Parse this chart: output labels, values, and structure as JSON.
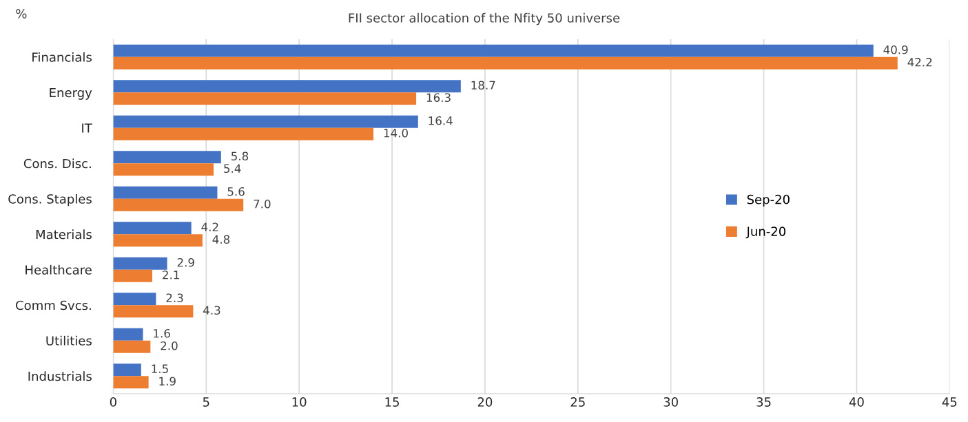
{
  "chart_data": {
    "type": "bar",
    "orientation": "horizontal",
    "title": "FII sector allocation of the Nfity 50 universe",
    "ylabel": "%",
    "categories": [
      "Financials",
      "Energy",
      "IT",
      "Cons. Disc.",
      "Cons. Staples",
      "Materials",
      "Healthcare",
      "Comm Svcs.",
      "Utilities",
      "Industrials"
    ],
    "series": [
      {
        "name": "Sep-20",
        "color": "#4472c4",
        "values": [
          40.9,
          18.7,
          16.4,
          5.8,
          5.6,
          4.2,
          2.9,
          2.3,
          1.6,
          1.5
        ],
        "value_labels": [
          "40.9",
          "18.7",
          "16.4",
          "5.8",
          "5.6",
          "4.2",
          "2.9",
          "2.3",
          "1.6",
          "1.5"
        ]
      },
      {
        "name": "Jun-20",
        "color": "#ed7d31",
        "values": [
          42.2,
          16.3,
          14.0,
          5.4,
          7.0,
          4.8,
          2.1,
          4.3,
          2.0,
          1.9
        ],
        "value_labels": [
          "42.2",
          "16.3",
          "14.0",
          "5.4",
          "7.0",
          "4.8",
          "2.1",
          "4.3",
          "2.0",
          "1.9"
        ]
      }
    ],
    "xlim": [
      0,
      45
    ],
    "xticks": [
      0,
      5,
      10,
      15,
      20,
      25,
      30,
      35,
      40,
      45
    ],
    "grid": "x",
    "legend": "right"
  }
}
